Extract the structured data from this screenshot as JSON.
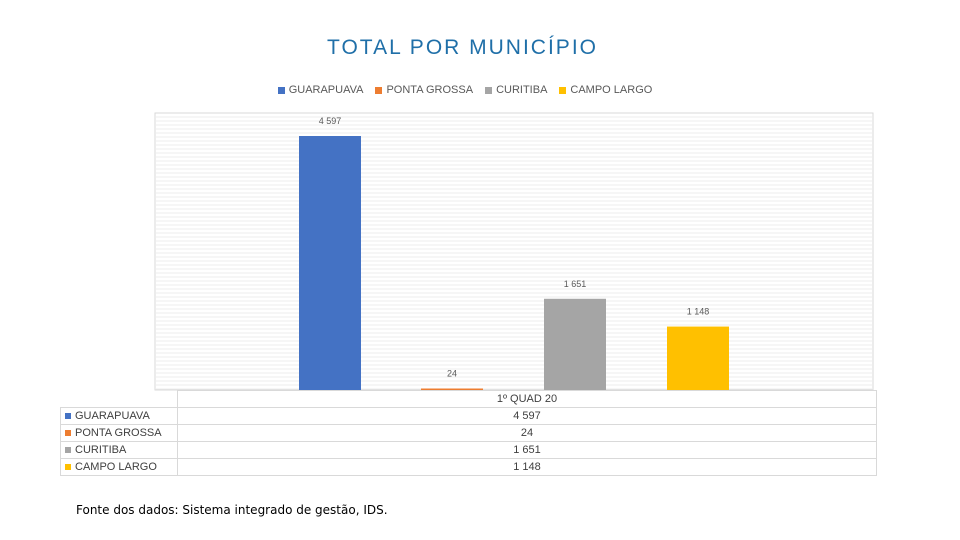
{
  "chart_data": {
    "type": "bar",
    "title": "TOTAL POR MUNICÍPIO",
    "categories": [
      "1º QUAD 20"
    ],
    "series": [
      {
        "name": "GUARAPUAVA",
        "values": [
          4597
        ],
        "label": "4 597",
        "color": "#4472c4"
      },
      {
        "name": "PONTA GROSSA",
        "values": [
          24
        ],
        "label": "24",
        "color": "#ed7d31"
      },
      {
        "name": "CURITIBA",
        "values": [
          1651
        ],
        "label": "1 651",
        "color": "#a5a5a5"
      },
      {
        "name": "CAMPO LARGO",
        "values": [
          1148
        ],
        "label": "1 148",
        "color": "#ffc000"
      }
    ],
    "legend_position": "top",
    "grid": true,
    "ylim": [
      0,
      4597
    ],
    "show_data_table": true
  },
  "source_note": "Fonte dos dados: Sistema integrado de gestão, IDS."
}
